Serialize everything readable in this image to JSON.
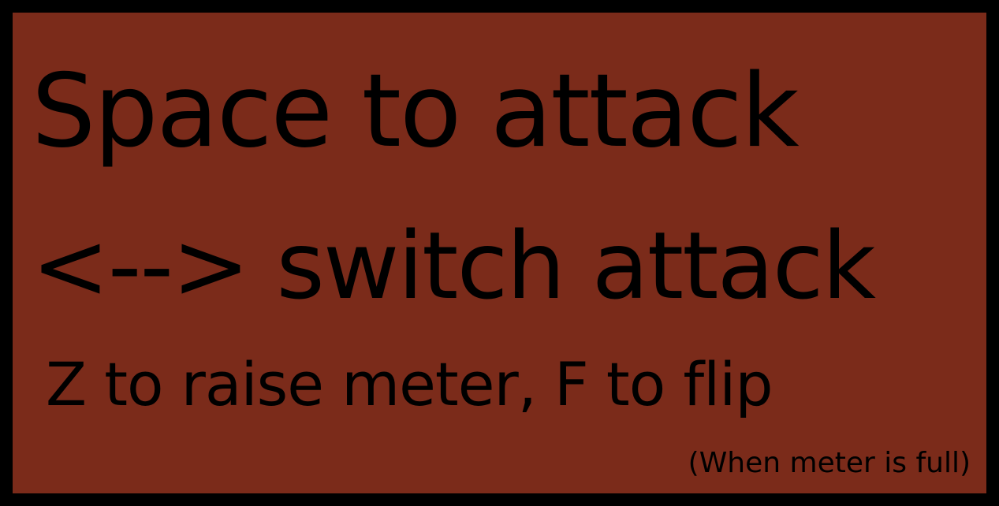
{
  "instructions": {
    "attack": "Space to attack",
    "switch": "<--> switch attack",
    "meter_flip": "Z to raise meter,  F to flip",
    "note": "(When meter is full)"
  },
  "colors": {
    "background": "#000000",
    "panel": "#7b2b1a",
    "text": "#000000"
  }
}
